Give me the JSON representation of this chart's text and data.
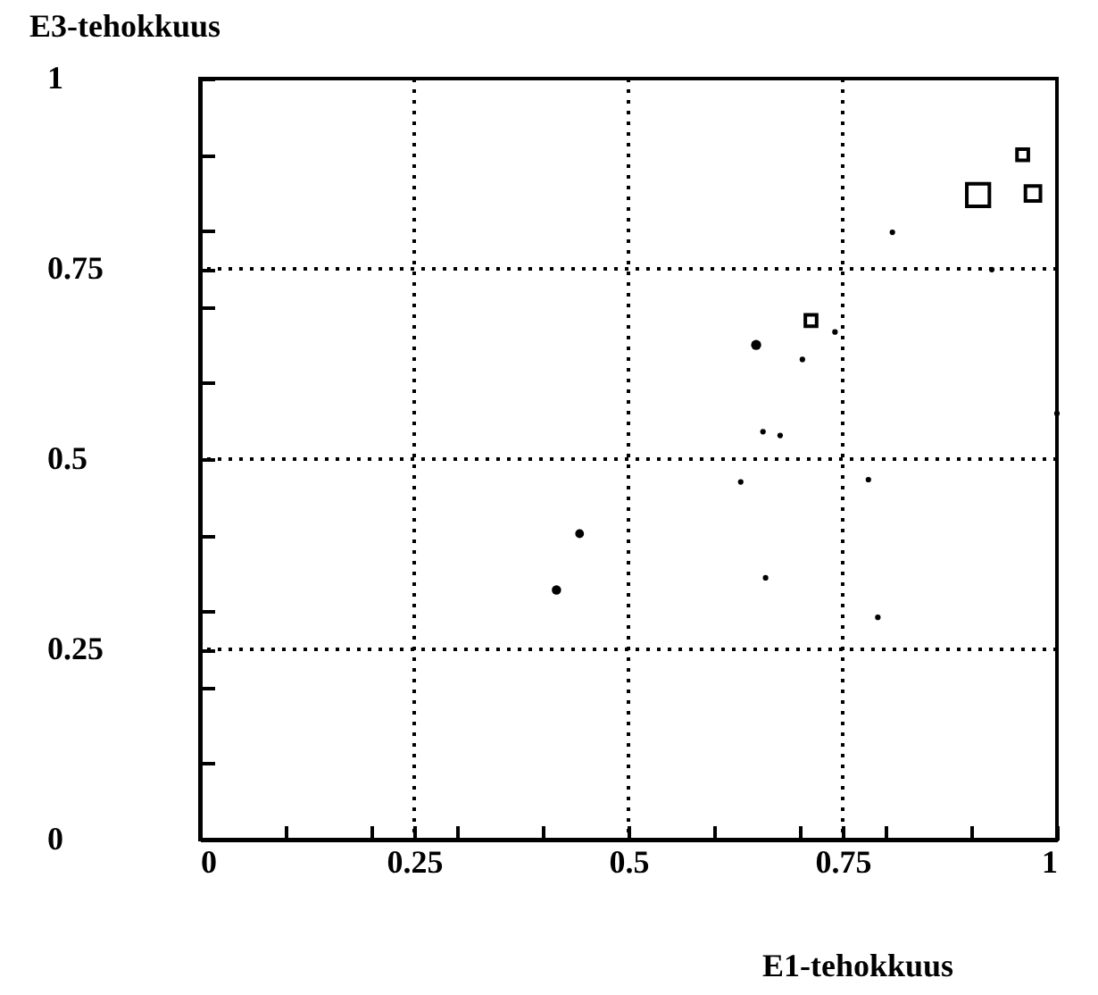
{
  "chart_data": {
    "type": "bubble",
    "xlabel": "E1-tehokkuus",
    "ylabel": "E3-tehokkuus",
    "xlim": [
      0,
      1
    ],
    "ylim": [
      0,
      1
    ],
    "xticks": [
      0,
      {
        "value": 0.1,
        "label": null
      },
      {
        "value": 0.2,
        "label": null
      },
      0.25,
      {
        "value": 0.3,
        "label": null
      },
      {
        "value": 0.4,
        "label": null
      },
      0.5,
      {
        "value": 0.6,
        "label": null
      },
      {
        "value": 0.7,
        "label": null
      },
      0.75,
      {
        "value": 0.8,
        "label": null
      },
      {
        "value": 0.9,
        "label": null
      },
      1
    ],
    "yticks": [
      0,
      {
        "value": 0.1,
        "label": null
      },
      {
        "value": 0.2,
        "label": null
      },
      0.25,
      {
        "value": 0.3,
        "label": null
      },
      {
        "value": 0.4,
        "label": null
      },
      0.5,
      {
        "value": 0.6,
        "label": null
      },
      {
        "value": 0.7,
        "label": null
      },
      0.75,
      {
        "value": 0.8,
        "label": null
      },
      {
        "value": 0.9,
        "label": null
      },
      1
    ],
    "grid": true,
    "series": [
      {
        "color": "#000000",
        "marker": "circle",
        "x": [
          0.808,
          0.924,
          0.741,
          0.649,
          0.703,
          0.657,
          0.677,
          0.631,
          0.78,
          0.443,
          0.416,
          0.66,
          0.791,
          1.0
        ],
        "values": [
          0.798,
          0.749,
          0.667,
          0.65,
          0.631,
          0.536,
          0.531,
          0.47,
          0.473,
          0.402,
          0.328,
          0.344,
          0.292,
          0.56
        ],
        "sizes": [
          0.06,
          0.06,
          0.06,
          0.2,
          0.06,
          0.06,
          0.06,
          0.06,
          0.06,
          0.15,
          0.17,
          0.06,
          0.06,
          0.06
        ]
      },
      {
        "color": "#000000",
        "marker": "square",
        "x": [
          0.96,
          0.908,
          0.972,
          0.713
        ],
        "values": [
          0.9,
          0.847,
          0.849,
          0.682
        ],
        "sizes": [
          0.25,
          1,
          0.44,
          0.25
        ]
      }
    ]
  }
}
